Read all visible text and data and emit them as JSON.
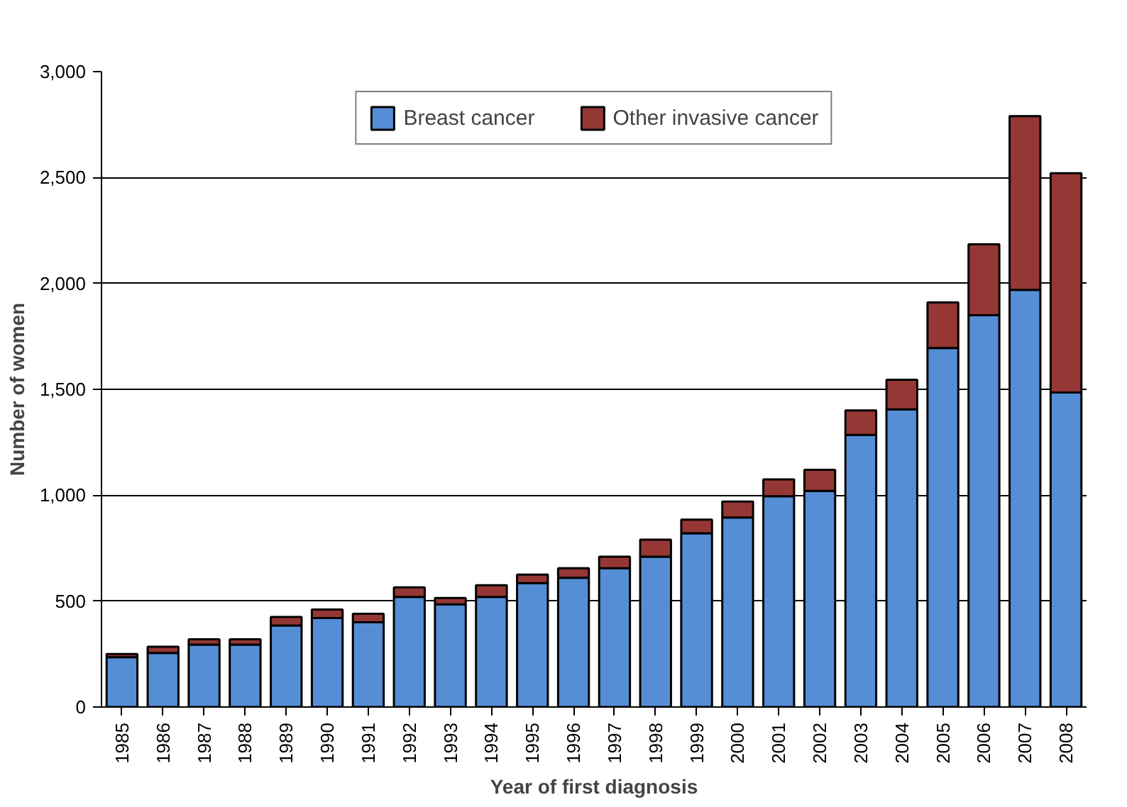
{
  "chart_data": {
    "type": "bar",
    "stacked": true,
    "xlabel": "Year of first diagnosis",
    "ylabel": "Number of women",
    "categories": [
      "1985",
      "1986",
      "1987",
      "1988",
      "1989",
      "1990",
      "1991",
      "1992",
      "1993",
      "1994",
      "1995",
      "1996",
      "1997",
      "1998",
      "1999",
      "2000",
      "2001",
      "2002",
      "2003",
      "2004",
      "2005",
      "2006",
      "2007",
      "2008"
    ],
    "series": [
      {
        "name": "Breast cancer",
        "color": "#558ed5",
        "values": [
          235,
          255,
          295,
          295,
          385,
          420,
          400,
          520,
          485,
          520,
          585,
          610,
          655,
          710,
          820,
          895,
          995,
          1020,
          1285,
          1405,
          1695,
          1850,
          1970,
          1485
        ]
      },
      {
        "name": "Other invasive cancer",
        "color": "#953735",
        "values": [
          15,
          30,
          25,
          25,
          40,
          40,
          40,
          45,
          30,
          55,
          40,
          45,
          55,
          80,
          65,
          75,
          80,
          100,
          115,
          140,
          215,
          335,
          820,
          1035
        ]
      }
    ],
    "ylim": [
      0,
      3000
    ],
    "yticks": [
      0,
      {
        "value": 500,
        "label": "500"
      },
      {
        "value": 1000,
        "label": "1,000"
      },
      {
        "value": 1500,
        "label": "1,500"
      },
      {
        "value": 2000,
        "label": "2,000"
      },
      {
        "value": 2500,
        "label": "2,500"
      },
      {
        "value": 3000,
        "label": "3,000"
      }
    ],
    "grid": "y",
    "legend": "top"
  }
}
